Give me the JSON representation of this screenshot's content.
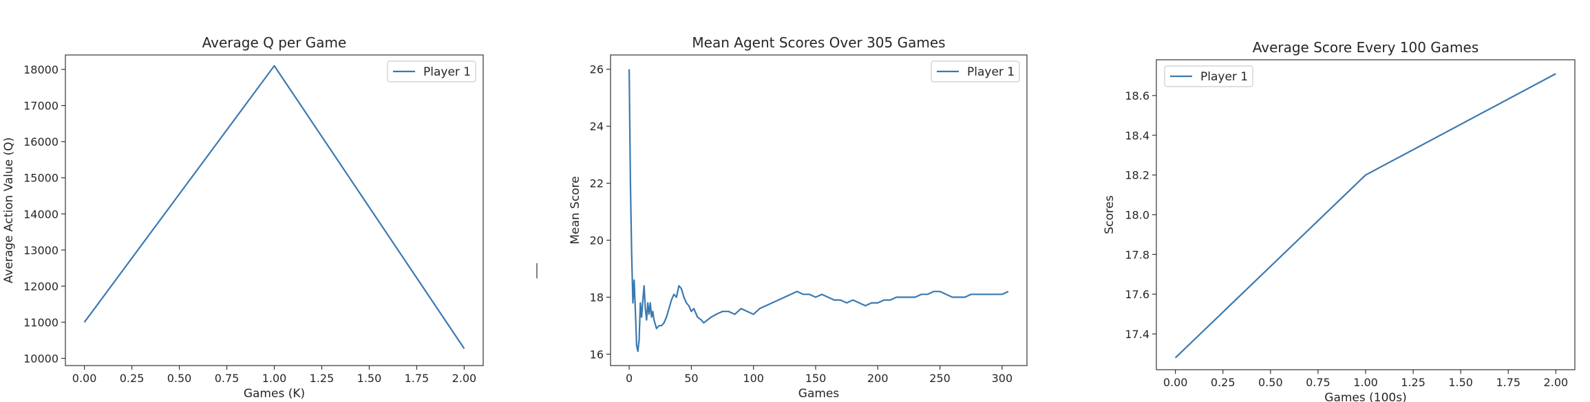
{
  "chart_data": [
    {
      "type": "line",
      "title": "Average Q per Game",
      "xlabel": "Games (K)",
      "ylabel": "Average Action Value (Q)",
      "xlim": [
        -0.1,
        2.1
      ],
      "ylim": [
        9800,
        18400
      ],
      "xticks": [
        0.0,
        0.25,
        0.5,
        0.75,
        1.0,
        1.25,
        1.5,
        1.75,
        2.0
      ],
      "xtick_labels": [
        "0.00",
        "0.25",
        "0.50",
        "0.75",
        "1.00",
        "1.25",
        "1.50",
        "1.75",
        "2.00"
      ],
      "yticks": [
        10000,
        11000,
        12000,
        13000,
        14000,
        15000,
        16000,
        17000,
        18000
      ],
      "ytick_labels": [
        "10000",
        "11000",
        "12000",
        "13000",
        "14000",
        "15000",
        "16000",
        "17000",
        "18000"
      ],
      "legend_position": "top-right",
      "grid": false,
      "series": [
        {
          "name": "Player 1",
          "color": "#3a78b0",
          "x": [
            0,
            1,
            2
          ],
          "y": [
            11000,
            18100,
            10270
          ]
        }
      ]
    },
    {
      "type": "line",
      "title": "Mean Agent Scores Over 305 Games",
      "xlabel": "Games",
      "ylabel": "Mean Score",
      "xlim": [
        -15,
        320
      ],
      "ylim": [
        15.6,
        26.5
      ],
      "xticks": [
        0,
        50,
        100,
        150,
        200,
        250,
        300
      ],
      "xtick_labels": [
        "0",
        "50",
        "100",
        "150",
        "200",
        "250",
        "300"
      ],
      "yticks": [
        16,
        18,
        20,
        22,
        24,
        26
      ],
      "ytick_labels": [
        "16",
        "18",
        "20",
        "22",
        "24",
        "26"
      ],
      "legend_position": "top-right",
      "grid": false,
      "series": [
        {
          "name": "Player 1",
          "color": "#3a78b0",
          "x": [
            0,
            1,
            2,
            3,
            4,
            5,
            6,
            7,
            8,
            9,
            10,
            11,
            12,
            13,
            14,
            15,
            16,
            17,
            18,
            19,
            20,
            22,
            24,
            26,
            28,
            30,
            32,
            34,
            36,
            38,
            40,
            42,
            44,
            46,
            48,
            50,
            52,
            55,
            58,
            60,
            63,
            66,
            70,
            75,
            80,
            85,
            90,
            95,
            100,
            105,
            110,
            115,
            120,
            125,
            130,
            135,
            140,
            145,
            150,
            155,
            160,
            165,
            170,
            175,
            180,
            185,
            190,
            195,
            200,
            205,
            210,
            215,
            220,
            225,
            230,
            235,
            240,
            245,
            250,
            255,
            260,
            265,
            270,
            275,
            280,
            285,
            290,
            295,
            300,
            305
          ],
          "y": [
            26.0,
            22.0,
            19.5,
            17.8,
            18.6,
            17.5,
            16.3,
            16.1,
            16.5,
            17.8,
            17.3,
            17.9,
            18.4,
            17.6,
            17.2,
            17.8,
            17.4,
            17.8,
            17.3,
            17.5,
            17.2,
            16.9,
            17.0,
            17.0,
            17.1,
            17.3,
            17.6,
            17.9,
            18.1,
            18.0,
            18.4,
            18.3,
            18.0,
            17.8,
            17.7,
            17.5,
            17.6,
            17.3,
            17.2,
            17.1,
            17.2,
            17.3,
            17.4,
            17.5,
            17.5,
            17.4,
            17.6,
            17.5,
            17.4,
            17.6,
            17.7,
            17.8,
            17.9,
            18.0,
            18.1,
            18.2,
            18.1,
            18.1,
            18.0,
            18.1,
            18.0,
            17.9,
            17.9,
            17.8,
            17.9,
            17.8,
            17.7,
            17.8,
            17.8,
            17.9,
            17.9,
            18.0,
            18.0,
            18.0,
            18.0,
            18.1,
            18.1,
            18.2,
            18.2,
            18.1,
            18.0,
            18.0,
            18.0,
            18.1,
            18.1,
            18.1,
            18.1,
            18.1,
            18.1,
            18.2
          ]
        }
      ]
    },
    {
      "type": "line",
      "title": "Average Score Every 100 Games",
      "xlabel": "Games (100s)",
      "ylabel": "Scores",
      "xlim": [
        -0.1,
        2.1
      ],
      "ylim": [
        17.22,
        18.78
      ],
      "xticks": [
        0.0,
        0.25,
        0.5,
        0.75,
        1.0,
        1.25,
        1.5,
        1.75,
        2.0
      ],
      "xtick_labels": [
        "0.00",
        "0.25",
        "0.50",
        "0.75",
        "1.00",
        "1.25",
        "1.50",
        "1.75",
        "2.00"
      ],
      "yticks": [
        17.4,
        17.6,
        17.8,
        18.0,
        18.2,
        18.4,
        18.6
      ],
      "ytick_labels": [
        "17.4",
        "17.6",
        "17.8",
        "18.0",
        "18.2",
        "18.4",
        "18.6"
      ],
      "legend_position": "top-left",
      "grid": false,
      "series": [
        {
          "name": "Player 1",
          "color": "#3a78b0",
          "x": [
            0,
            1,
            2
          ],
          "y": [
            17.28,
            18.2,
            18.71
          ]
        }
      ]
    }
  ]
}
